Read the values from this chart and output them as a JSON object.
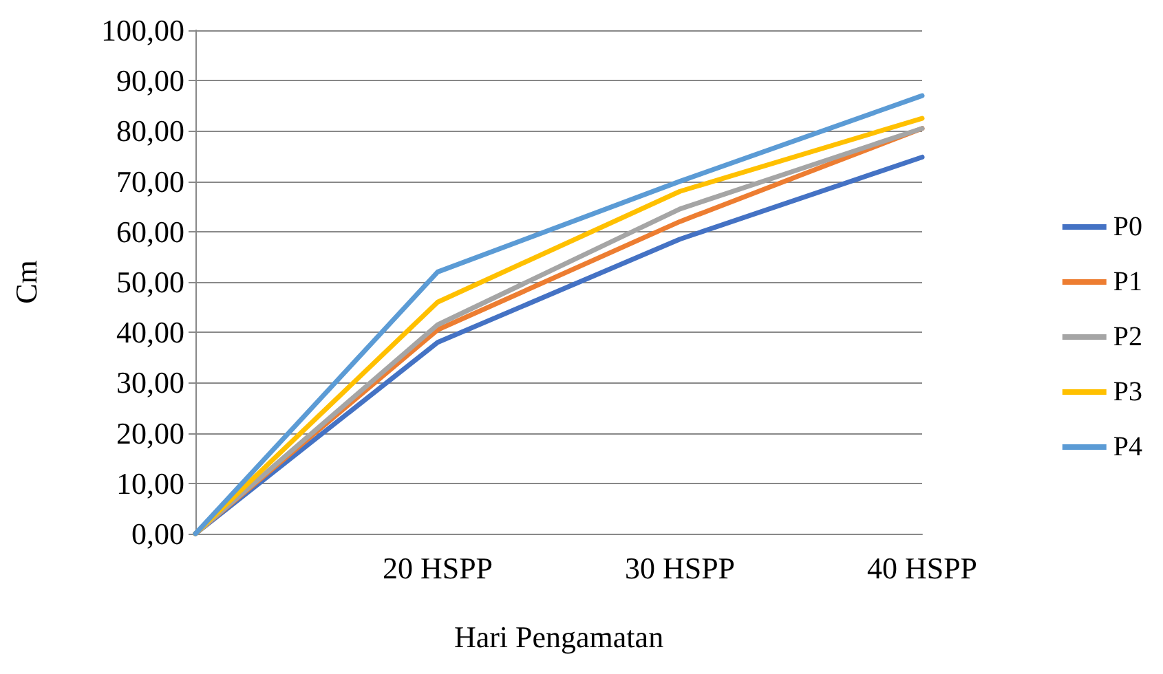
{
  "chart_data": {
    "type": "line",
    "xlabel": "Hari Pengamatan",
    "ylabel": "Cm",
    "categories": [
      null,
      "20 HSPP",
      "30 HSPP",
      "40 HSPP"
    ],
    "series": [
      {
        "name": "P0",
        "color": "#4472c4",
        "values": [
          0,
          38,
          58.5,
          74.8
        ]
      },
      {
        "name": "P1",
        "color": "#ed7d31",
        "values": [
          0,
          40.5,
          62,
          80.5
        ]
      },
      {
        "name": "P2",
        "color": "#a5a5a5",
        "values": [
          0,
          41.5,
          64.5,
          80.5
        ]
      },
      {
        "name": "P3",
        "color": "#ffc000",
        "values": [
          0,
          46,
          68,
          82.5
        ]
      },
      {
        "name": "P4",
        "color": "#5b9bd5",
        "values": [
          0,
          52,
          70,
          87
        ]
      }
    ],
    "ylim": [
      0,
      100
    ],
    "yticks": [
      {
        "value": 0,
        "label": "0,00"
      },
      {
        "value": 10,
        "label": "10,00"
      },
      {
        "value": 20,
        "label": "20,00"
      },
      {
        "value": 30,
        "label": "30,00"
      },
      {
        "value": 40,
        "label": "40,00"
      },
      {
        "value": 50,
        "label": "50,00"
      },
      {
        "value": 60,
        "label": "60,00"
      },
      {
        "value": 70,
        "label": "70,00"
      },
      {
        "value": 80,
        "label": "80,00"
      },
      {
        "value": 90,
        "label": "90,00"
      },
      {
        "value": 100,
        "label": "100,00"
      }
    ],
    "grid": "y",
    "legend": "right",
    "marker": "none",
    "line_style": "solid"
  }
}
